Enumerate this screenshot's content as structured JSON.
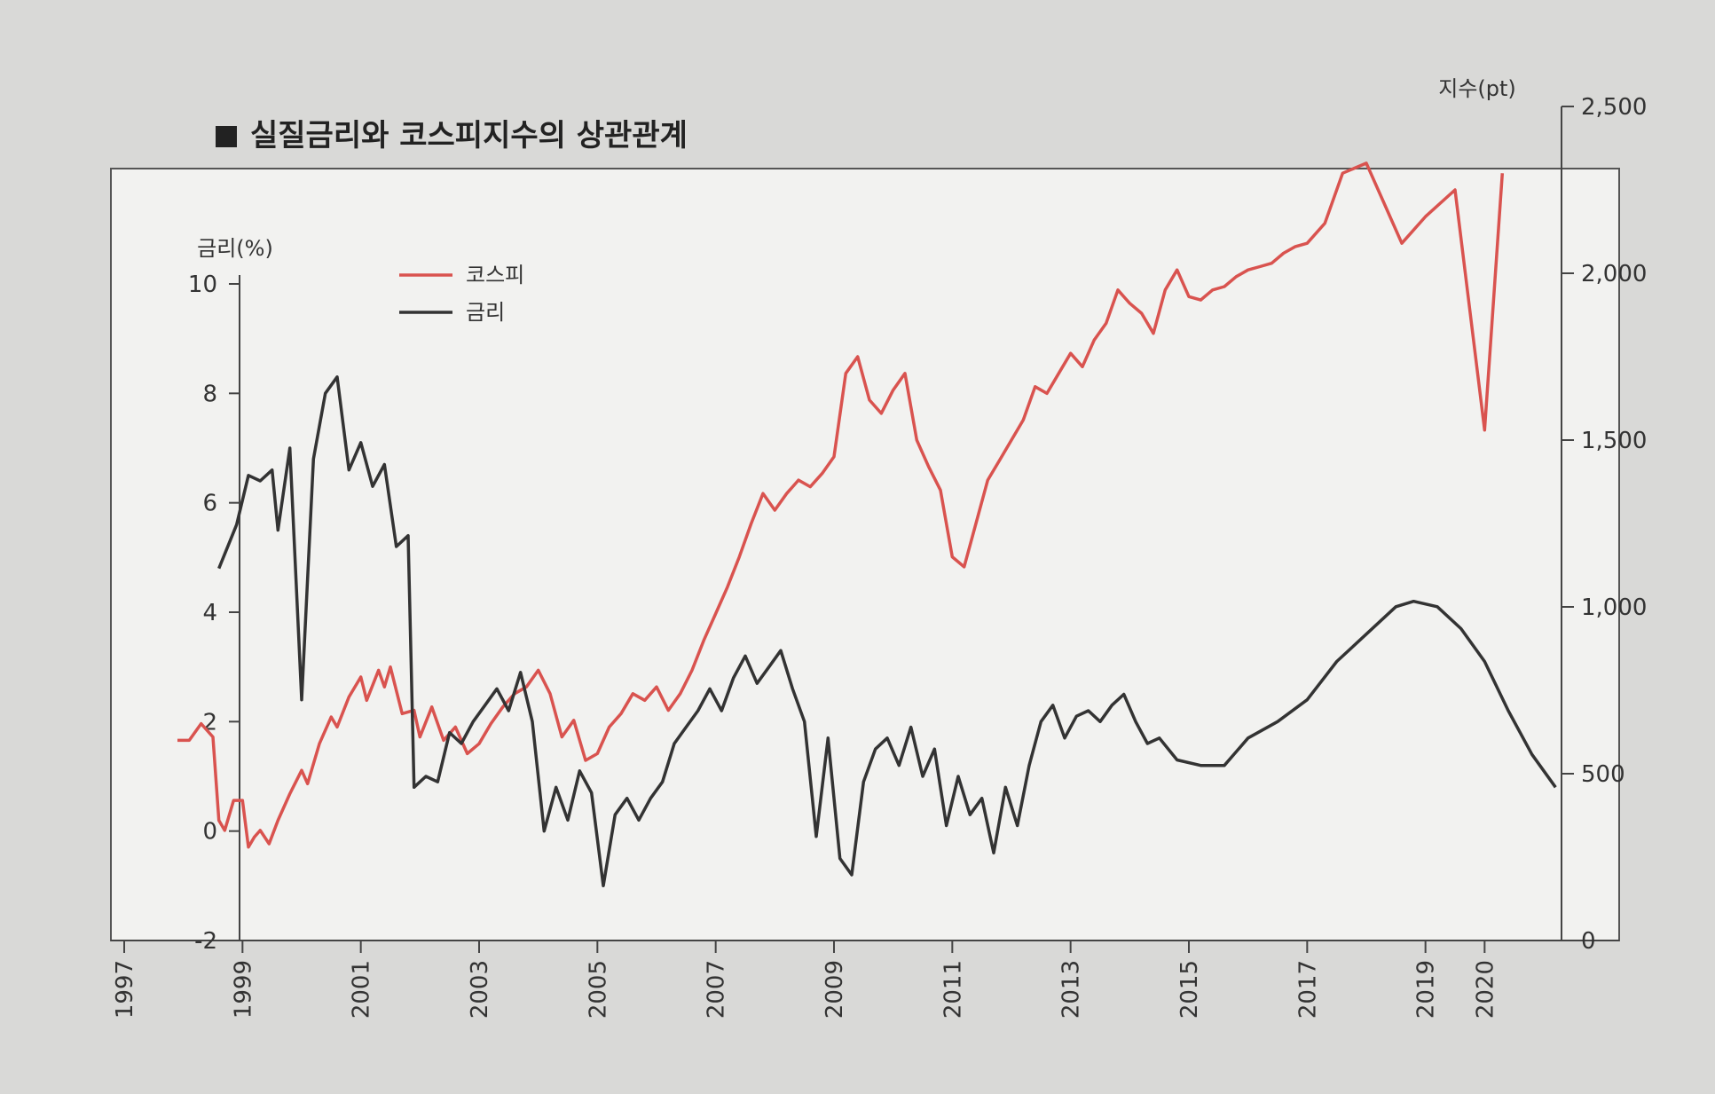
{
  "chart_data": {
    "type": "line",
    "title": "실질금리와 코스피지수의 상관관계",
    "title_marker": "■",
    "y_left": {
      "label": "금리(%)",
      "ticks": [
        -2,
        0,
        2,
        4,
        6,
        8,
        10
      ],
      "range": [
        -2,
        10
      ]
    },
    "y_right": {
      "label": "지수(pt)",
      "ticks": [
        0,
        500,
        1000,
        1500,
        2000,
        2500
      ],
      "tick_labels": [
        "0",
        "500",
        "1,000",
        "1,500",
        "2,000",
        "2,500"
      ],
      "range": [
        0,
        2500
      ]
    },
    "x": {
      "ticks": [
        "1997",
        "1999",
        "2001",
        "2003",
        "2005",
        "2007",
        "2009",
        "2011",
        "2013",
        "2015",
        "2017",
        "2019",
        "2020"
      ]
    },
    "legend": {
      "position": "top-left",
      "kospi_label": "코스피",
      "rate_label": "금리"
    },
    "colors": {
      "kospi": "#d9534f",
      "rate": "#333333"
    },
    "series": [
      {
        "name": "코스피",
        "axis": "right",
        "points": [
          [
            1997.9,
            600
          ],
          [
            1998.1,
            600
          ],
          [
            1998.3,
            650
          ],
          [
            1998.5,
            610
          ],
          [
            1998.6,
            360
          ],
          [
            1998.7,
            330
          ],
          [
            1998.85,
            420
          ],
          [
            1999.0,
            420
          ],
          [
            1999.1,
            280
          ],
          [
            1999.2,
            310
          ],
          [
            1999.3,
            330
          ],
          [
            1999.45,
            290
          ],
          [
            1999.6,
            360
          ],
          [
            1999.8,
            440
          ],
          [
            2000.0,
            510
          ],
          [
            2000.1,
            470
          ],
          [
            2000.3,
            590
          ],
          [
            2000.5,
            670
          ],
          [
            2000.6,
            640
          ],
          [
            2000.8,
            730
          ],
          [
            2001.0,
            790
          ],
          [
            2001.1,
            720
          ],
          [
            2001.3,
            810
          ],
          [
            2001.4,
            760
          ],
          [
            2001.5,
            820
          ],
          [
            2001.7,
            680
          ],
          [
            2001.9,
            690
          ],
          [
            2002.0,
            610
          ],
          [
            2002.2,
            700
          ],
          [
            2002.4,
            600
          ],
          [
            2002.6,
            640
          ],
          [
            2002.8,
            560
          ],
          [
            2003.0,
            590
          ],
          [
            2003.2,
            650
          ],
          [
            2003.4,
            700
          ],
          [
            2003.6,
            740
          ],
          [
            2003.8,
            760
          ],
          [
            2004.0,
            810
          ],
          [
            2004.2,
            740
          ],
          [
            2004.4,
            610
          ],
          [
            2004.6,
            660
          ],
          [
            2004.8,
            540
          ],
          [
            2005.0,
            560
          ],
          [
            2005.2,
            640
          ],
          [
            2005.4,
            680
          ],
          [
            2005.6,
            740
          ],
          [
            2005.8,
            720
          ],
          [
            2006.0,
            760
          ],
          [
            2006.2,
            690
          ],
          [
            2006.4,
            740
          ],
          [
            2006.6,
            810
          ],
          [
            2006.8,
            900
          ],
          [
            2007.0,
            980
          ],
          [
            2007.2,
            1060
          ],
          [
            2007.4,
            1150
          ],
          [
            2007.6,
            1250
          ],
          [
            2007.8,
            1340
          ],
          [
            2008.0,
            1290
          ],
          [
            2008.2,
            1340
          ],
          [
            2008.4,
            1380
          ],
          [
            2008.6,
            1360
          ],
          [
            2008.8,
            1400
          ],
          [
            2009.0,
            1450
          ],
          [
            2009.2,
            1700
          ],
          [
            2009.4,
            1750
          ],
          [
            2009.6,
            1620
          ],
          [
            2009.8,
            1580
          ],
          [
            2010.0,
            1650
          ],
          [
            2010.2,
            1700
          ],
          [
            2010.4,
            1500
          ],
          [
            2010.6,
            1420
          ],
          [
            2010.8,
            1350
          ],
          [
            2011.0,
            1150
          ],
          [
            2011.2,
            1120
          ],
          [
            2011.4,
            1250
          ],
          [
            2011.6,
            1380
          ],
          [
            2011.8,
            1440
          ],
          [
            2012.0,
            1500
          ],
          [
            2012.2,
            1560
          ],
          [
            2012.4,
            1660
          ],
          [
            2012.6,
            1640
          ],
          [
            2012.8,
            1700
          ],
          [
            2013.0,
            1760
          ],
          [
            2013.2,
            1720
          ],
          [
            2013.4,
            1800
          ],
          [
            2013.6,
            1850
          ],
          [
            2013.8,
            1950
          ],
          [
            2014.0,
            1910
          ],
          [
            2014.2,
            1880
          ],
          [
            2014.4,
            1820
          ],
          [
            2014.6,
            1950
          ],
          [
            2014.8,
            2010
          ],
          [
            2015.0,
            1930
          ],
          [
            2015.2,
            1920
          ],
          [
            2015.4,
            1950
          ],
          [
            2015.6,
            1960
          ],
          [
            2015.8,
            1990
          ],
          [
            2016.0,
            2010
          ],
          [
            2016.2,
            2020
          ],
          [
            2016.4,
            2030
          ],
          [
            2016.6,
            2060
          ],
          [
            2016.8,
            2080
          ],
          [
            2017.0,
            2090
          ],
          [
            2017.3,
            2150
          ],
          [
            2017.6,
            2300
          ],
          [
            2018.0,
            2330
          ],
          [
            2018.3,
            2210
          ],
          [
            2018.6,
            2090
          ],
          [
            2019.0,
            2170
          ],
          [
            2019.5,
            2250
          ],
          [
            2020.0,
            1530
          ],
          [
            2020.3,
            2300
          ]
        ]
      },
      {
        "name": "금리",
        "axis": "left",
        "points": [
          [
            1998.6,
            4.8
          ],
          [
            1998.9,
            5.6
          ],
          [
            1999.1,
            6.5
          ],
          [
            1999.3,
            6.4
          ],
          [
            1999.5,
            6.6
          ],
          [
            1999.6,
            5.5
          ],
          [
            1999.8,
            7.0
          ],
          [
            2000.0,
            2.4
          ],
          [
            2000.2,
            6.8
          ],
          [
            2000.4,
            8.0
          ],
          [
            2000.6,
            8.3
          ],
          [
            2000.8,
            6.6
          ],
          [
            2001.0,
            7.1
          ],
          [
            2001.2,
            6.3
          ],
          [
            2001.4,
            6.7
          ],
          [
            2001.6,
            5.2
          ],
          [
            2001.8,
            5.4
          ],
          [
            2001.9,
            0.8
          ],
          [
            2002.1,
            1.0
          ],
          [
            2002.3,
            0.9
          ],
          [
            2002.5,
            1.8
          ],
          [
            2002.7,
            1.6
          ],
          [
            2002.9,
            2.0
          ],
          [
            2003.1,
            2.3
          ],
          [
            2003.3,
            2.6
          ],
          [
            2003.5,
            2.2
          ],
          [
            2003.7,
            2.9
          ],
          [
            2003.9,
            2.0
          ],
          [
            2004.1,
            0.0
          ],
          [
            2004.3,
            0.8
          ],
          [
            2004.5,
            0.2
          ],
          [
            2004.7,
            1.1
          ],
          [
            2004.9,
            0.7
          ],
          [
            2005.1,
            -1.0
          ],
          [
            2005.3,
            0.3
          ],
          [
            2005.5,
            0.6
          ],
          [
            2005.7,
            0.2
          ],
          [
            2005.9,
            0.6
          ],
          [
            2006.1,
            0.9
          ],
          [
            2006.3,
            1.6
          ],
          [
            2006.5,
            1.9
          ],
          [
            2006.7,
            2.2
          ],
          [
            2006.9,
            2.6
          ],
          [
            2007.1,
            2.2
          ],
          [
            2007.3,
            2.8
          ],
          [
            2007.5,
            3.2
          ],
          [
            2007.7,
            2.7
          ],
          [
            2007.9,
            3.0
          ],
          [
            2008.1,
            3.3
          ],
          [
            2008.3,
            2.6
          ],
          [
            2008.5,
            2.0
          ],
          [
            2008.7,
            -0.1
          ],
          [
            2008.9,
            1.7
          ],
          [
            2009.1,
            -0.5
          ],
          [
            2009.3,
            -0.8
          ],
          [
            2009.5,
            0.9
          ],
          [
            2009.7,
            1.5
          ],
          [
            2009.9,
            1.7
          ],
          [
            2010.1,
            1.2
          ],
          [
            2010.3,
            1.9
          ],
          [
            2010.5,
            1.0
          ],
          [
            2010.7,
            1.5
          ],
          [
            2010.9,
            0.1
          ],
          [
            2011.1,
            1.0
          ],
          [
            2011.3,
            0.3
          ],
          [
            2011.5,
            0.6
          ],
          [
            2011.7,
            -0.4
          ],
          [
            2011.9,
            0.8
          ],
          [
            2012.1,
            0.1
          ],
          [
            2012.3,
            1.2
          ],
          [
            2012.5,
            2.0
          ],
          [
            2012.7,
            2.3
          ],
          [
            2012.9,
            1.7
          ],
          [
            2013.1,
            2.1
          ],
          [
            2013.3,
            2.2
          ],
          [
            2013.5,
            2.0
          ],
          [
            2013.7,
            2.3
          ],
          [
            2013.9,
            2.5
          ],
          [
            2014.1,
            2.0
          ],
          [
            2014.3,
            1.6
          ],
          [
            2014.5,
            1.7
          ],
          [
            2014.8,
            1.3
          ],
          [
            2015.2,
            1.2
          ],
          [
            2015.6,
            1.2
          ],
          [
            2016.0,
            1.7
          ],
          [
            2016.5,
            2.0
          ],
          [
            2017.0,
            2.4
          ],
          [
            2017.5,
            3.1
          ],
          [
            2018.0,
            3.6
          ],
          [
            2018.5,
            4.1
          ],
          [
            2018.8,
            4.2
          ],
          [
            2019.2,
            4.1
          ],
          [
            2019.6,
            3.7
          ],
          [
            2020.0,
            3.1
          ],
          [
            2020.4,
            2.2
          ],
          [
            2020.8,
            1.4
          ],
          [
            2021.2,
            0.8
          ]
        ]
      }
    ],
    "xlim": [
      1997,
      2021.3
    ]
  }
}
